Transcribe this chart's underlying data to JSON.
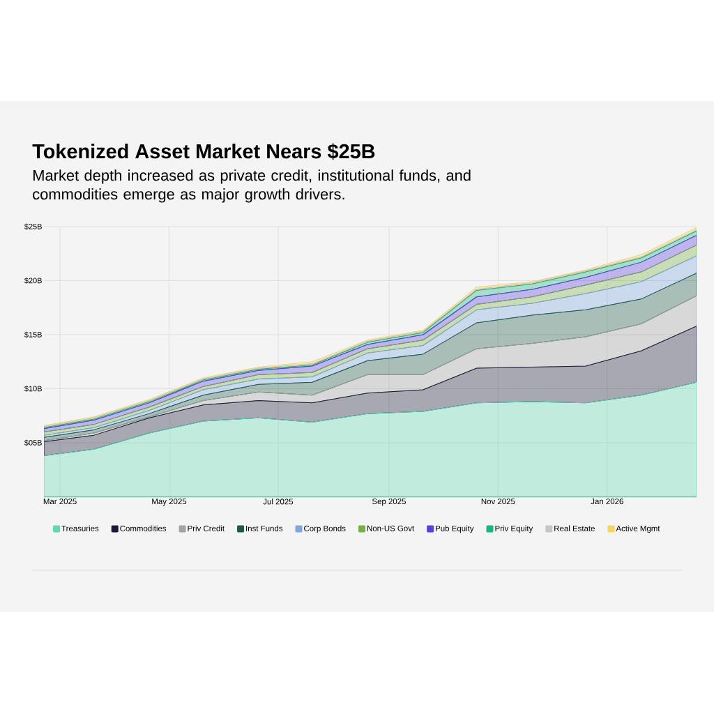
{
  "chart_data": {
    "type": "area",
    "stacked": true,
    "title": "Tokenized Asset Market Nears $25B",
    "subtitle": "Market depth increased as private credit, institutional funds, and commodities emerge as major growth drivers.",
    "x": [
      "2025-02-20",
      "2025-03-20",
      "2025-04-20",
      "2025-05-20",
      "2025-06-20",
      "2025-07-20",
      "2025-08-20",
      "2025-09-20",
      "2025-10-20",
      "2025-11-20",
      "2025-12-20",
      "2026-01-20",
      "2026-02-20"
    ],
    "xlim": [
      "2025-02-20",
      "2026-02-20"
    ],
    "xticks": [
      {
        "value": "2025-03-01",
        "label": "Mar 2025"
      },
      {
        "value": "2025-05-01",
        "label": "May 2025"
      },
      {
        "value": "2025-07-01",
        "label": "Jul 2025"
      },
      {
        "value": "2025-09-01",
        "label": "Sep 2025"
      },
      {
        "value": "2025-11-01",
        "label": "Nov 2025"
      },
      {
        "value": "2026-01-01",
        "label": "Jan 2026"
      }
    ],
    "ylim": [
      0,
      25
    ],
    "yticks": [
      {
        "value": 5,
        "label": "$05B"
      },
      {
        "value": 10,
        "label": "$10B"
      },
      {
        "value": 15,
        "label": "$15B"
      },
      {
        "value": 20,
        "label": "$20B"
      },
      {
        "value": 25,
        "label": "$25B"
      }
    ],
    "grid": true,
    "legend": "bottom",
    "series": [
      {
        "name": "Treasuries",
        "color": "#5fd9b3",
        "values": [
          3.8,
          4.4,
          5.9,
          7.0,
          7.3,
          6.9,
          7.7,
          7.9,
          8.7,
          8.8,
          8.7,
          9.4,
          10.6
        ]
      },
      {
        "name": "Commodities",
        "color": "#1b1a38",
        "values": [
          1.3,
          1.3,
          1.4,
          1.5,
          1.6,
          1.8,
          1.9,
          2.0,
          3.2,
          3.2,
          3.4,
          4.1,
          5.2
        ]
      },
      {
        "name": "Priv Credit",
        "color": "#a3a3a3",
        "values": [
          0.1,
          0.2,
          0.1,
          0.4,
          0.8,
          0.7,
          1.7,
          1.4,
          1.8,
          2.2,
          2.7,
          2.5,
          2.8
        ]
      },
      {
        "name": "Inst Funds",
        "color": "#1e5a46",
        "values": [
          0.3,
          0.3,
          0.3,
          0.5,
          0.7,
          1.2,
          1.3,
          1.9,
          2.4,
          2.6,
          2.5,
          2.3,
          2.1
        ]
      },
      {
        "name": "Corp Bonds",
        "color": "#7fa6dc",
        "values": [
          0.2,
          0.2,
          0.3,
          0.5,
          0.5,
          0.5,
          0.7,
          0.8,
          1.2,
          1.1,
          1.5,
          1.6,
          1.6
        ]
      },
      {
        "name": "Non-US Govt",
        "color": "#75b043",
        "values": [
          0.3,
          0.3,
          0.3,
          0.3,
          0.4,
          0.4,
          0.4,
          0.5,
          0.5,
          0.6,
          0.8,
          0.9,
          1.0
        ]
      },
      {
        "name": "Pub Equity",
        "color": "#5b3de0",
        "values": [
          0.3,
          0.4,
          0.4,
          0.5,
          0.4,
          0.6,
          0.4,
          0.5,
          0.7,
          0.7,
          0.7,
          0.9,
          0.9
        ]
      },
      {
        "name": "Priv Equity",
        "color": "#17b57f",
        "values": [
          0.1,
          0.1,
          0.1,
          0.1,
          0.1,
          0.1,
          0.2,
          0.2,
          0.6,
          0.5,
          0.5,
          0.4,
          0.4
        ]
      },
      {
        "name": "Real Estate",
        "color": "#c6c6c6",
        "values": [
          0.1,
          0.1,
          0.1,
          0.1,
          0.1,
          0.1,
          0.1,
          0.1,
          0.1,
          0.1,
          0.1,
          0.1,
          0.1
        ]
      },
      {
        "name": "Active Mgmt",
        "color": "#f7d35f",
        "values": [
          0.1,
          0.1,
          0.1,
          0.1,
          0.1,
          0.2,
          0.1,
          0.1,
          0.2,
          0.1,
          0.1,
          0.2,
          0.2
        ]
      }
    ]
  }
}
